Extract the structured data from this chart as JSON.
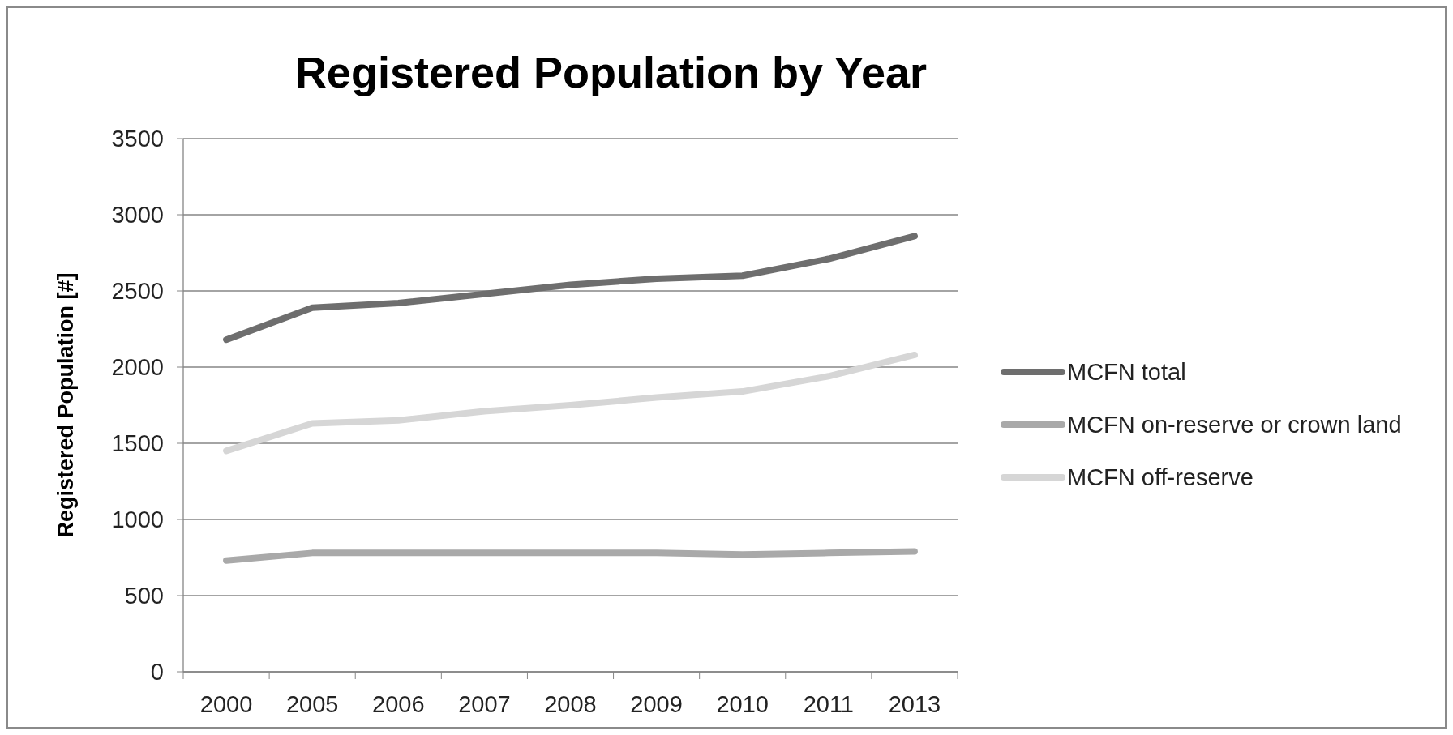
{
  "chart_data": {
    "type": "line",
    "title": "Registered Population by Year",
    "ylabel": "Registered Population  [#]",
    "categories": [
      "2000",
      "2005",
      "2006",
      "2007",
      "2008",
      "2009",
      "2010",
      "2011",
      "2013"
    ],
    "series": [
      {
        "name": "MCFN total",
        "color": "#6e6e6e",
        "values": [
          2180,
          2390,
          2420,
          2480,
          2540,
          2580,
          2600,
          2710,
          2860
        ]
      },
      {
        "name": "MCFN on-reserve or crown land",
        "color": "#a9a9a9",
        "values": [
          730,
          780,
          780,
          780,
          780,
          780,
          770,
          780,
          790
        ]
      },
      {
        "name": "MCFN off-reserve",
        "color": "#d6d6d6",
        "values": [
          1450,
          1630,
          1650,
          1710,
          1750,
          1800,
          1840,
          1940,
          2080
        ]
      }
    ],
    "ylim": [
      0,
      3500
    ],
    "yticks": [
      0,
      500,
      1000,
      1500,
      2000,
      2500,
      3000,
      3500
    ],
    "grid": "y",
    "legend": "right",
    "marker": "none",
    "line_style": "solid"
  }
}
